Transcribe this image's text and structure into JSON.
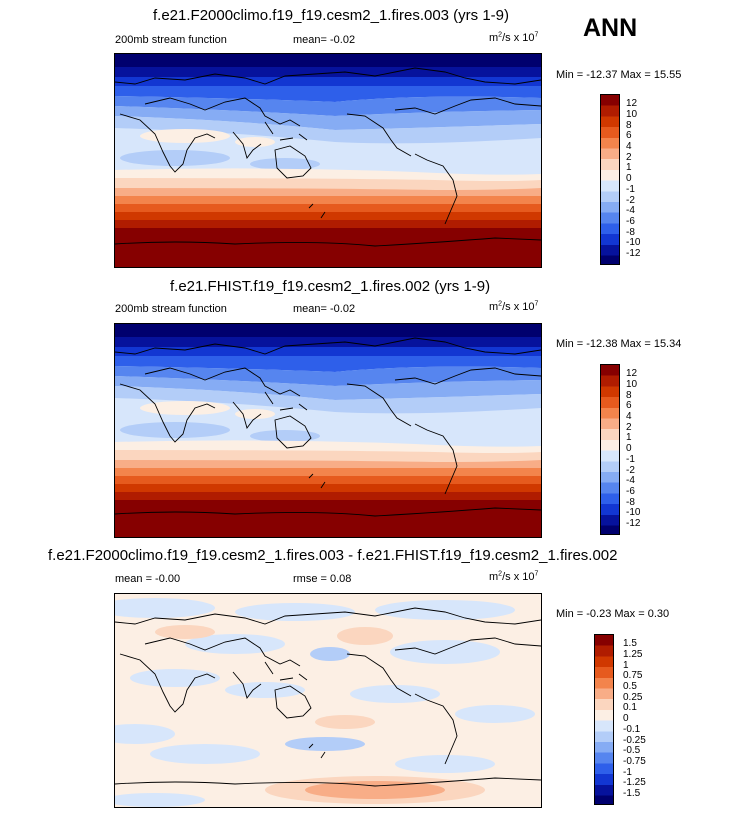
{
  "ann_label": "ANN",
  "panels": [
    {
      "title": "f.e21.F2000climo.f19_f19.cesm2_1.fires.003 (yrs 1-9)",
      "left_label": "200mb stream function",
      "mean_label": "mean=  -0.02",
      "extra_label": "",
      "units": "m²/s x 10⁷",
      "units_base": "m",
      "units_sup1": "2",
      "units_mid": "/s x 10",
      "units_sup2": "7",
      "minmax": "Min = -12.37 Max =  15.55",
      "levels": [
        "12",
        "10",
        "8",
        "6",
        "4",
        "2",
        "1",
        "0",
        "-1",
        "-2",
        "-4",
        "-6",
        "-8",
        "-10",
        "-12"
      ]
    },
    {
      "title": "f.e21.FHIST.f19_f19.cesm2_1.fires.002 (yrs 1-9)",
      "left_label": "200mb stream function",
      "mean_label": "mean=  -0.02",
      "extra_label": "",
      "units_base": "m",
      "units_sup1": "2",
      "units_mid": "/s x 10",
      "units_sup2": "7",
      "minmax": "Min = -12.38 Max =  15.34",
      "levels": [
        "12",
        "10",
        "8",
        "6",
        "4",
        "2",
        "1",
        "0",
        "-1",
        "-2",
        "-4",
        "-6",
        "-8",
        "-10",
        "-12"
      ]
    },
    {
      "title": "f.e21.F2000climo.f19_f19.cesm2_1.fires.003 - f.e21.FHIST.f19_f19.cesm2_1.fires.002",
      "left_label": "mean =  -0.00",
      "mean_label": "rmse =   0.08",
      "units_base": "m",
      "units_sup1": "2",
      "units_mid": "/s x 10",
      "units_sup2": "7",
      "minmax": "Min =  -0.23 Max =   0.30",
      "levels": [
        "1.5",
        "1.25",
        "1",
        "0.75",
        "0.5",
        "0.25",
        "0.1",
        "0",
        "-0.1",
        "-0.25",
        "-0.5",
        "-0.75",
        "-1",
        "-1.25",
        "-1.5"
      ]
    }
  ],
  "colors": {
    "scale": [
      "#860000",
      "#b01c00",
      "#d03800",
      "#e65a1e",
      "#f3844c",
      "#f8ad87",
      "#fbd6bf",
      "#fcefe4",
      "#d7e6fb",
      "#b3cdf8",
      "#86acf4",
      "#5685ef",
      "#2e5fea",
      "#1236d2",
      "#06129c",
      "#00006e"
    ]
  }
}
